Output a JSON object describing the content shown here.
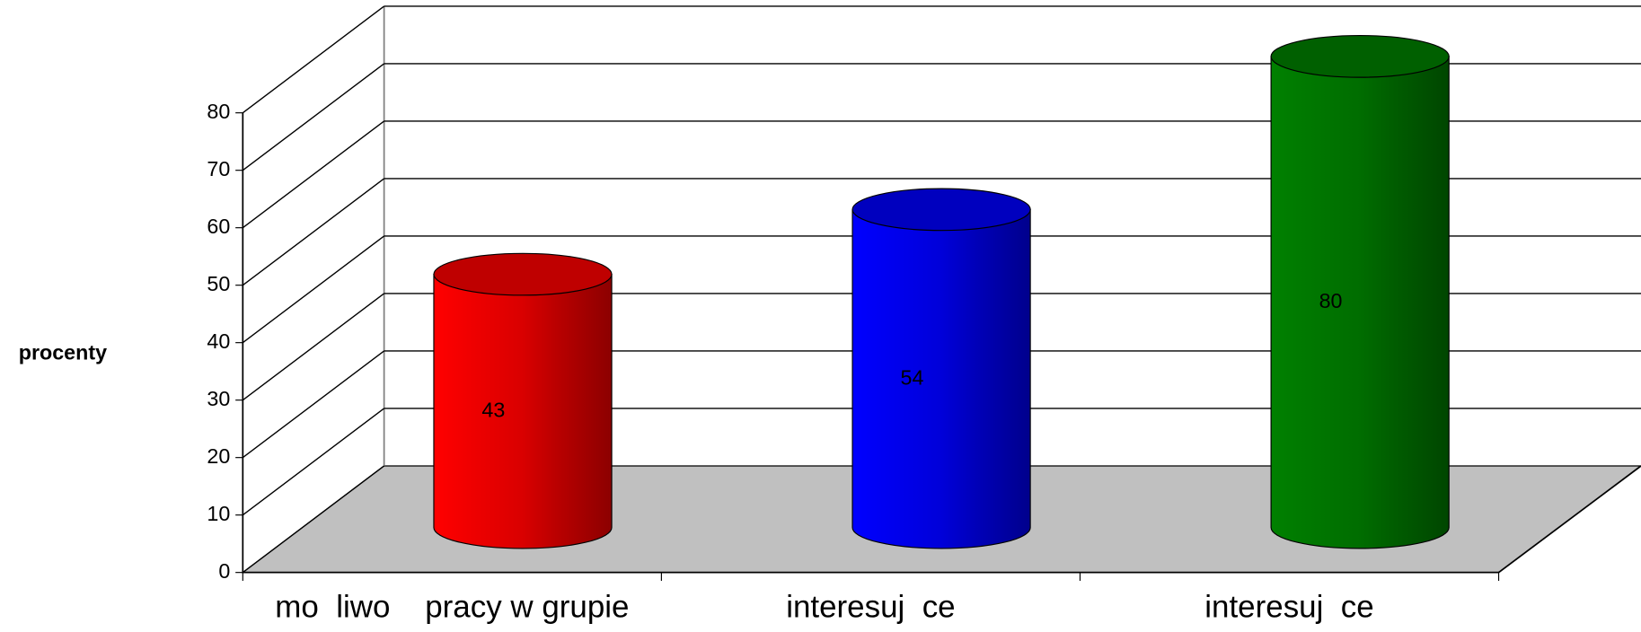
{
  "chart_data": {
    "type": "bar3d",
    "y_label": "procenty",
    "categories": [
      "mo  liwo    pracy w grupie",
      "interesuj  ce",
      "interesuj  ce"
    ],
    "series": [
      {
        "name": null,
        "values": [
          43,
          54,
          80
        ],
        "colors": [
          "#ff0000",
          "#0000ff",
          "#008000"
        ]
      }
    ],
    "ylim": [
      0,
      80
    ],
    "yticks": [
      0,
      10,
      20,
      30,
      40,
      50,
      60,
      70,
      80
    ],
    "grid": true
  }
}
